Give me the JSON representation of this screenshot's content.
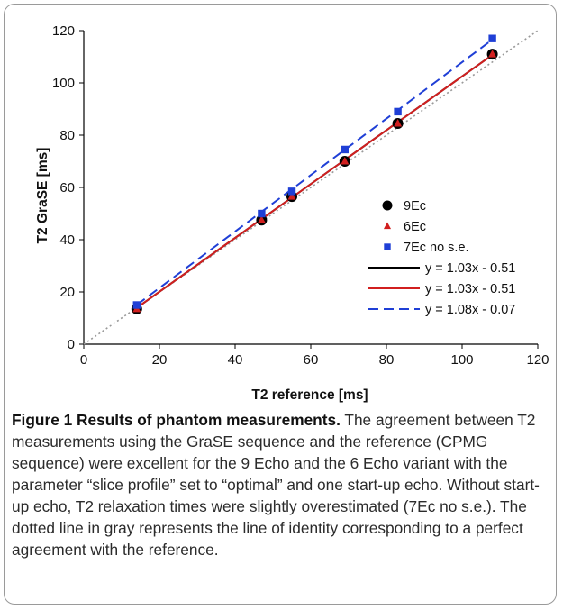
{
  "chart_data": {
    "type": "scatter",
    "xlabel": "T2 reference [ms]",
    "ylabel": "T2 GraSE [ms]",
    "xlim": [
      0,
      120
    ],
    "ylim": [
      0,
      120
    ],
    "xticks": [
      0,
      20,
      40,
      60,
      80,
      100,
      120
    ],
    "yticks": [
      0,
      20,
      40,
      60,
      80,
      100,
      120
    ],
    "grid": false,
    "legend_position": "bottom-right",
    "identity_line": {
      "style": "dotted",
      "color": "#999999"
    },
    "series": [
      {
        "name": "9Ec",
        "marker": "circle",
        "color": "#000000",
        "x": [
          14,
          47,
          55,
          69,
          83,
          108
        ],
        "y": [
          13.5,
          47.5,
          56.5,
          70,
          84.5,
          111
        ]
      },
      {
        "name": "6Ec",
        "marker": "triangle",
        "color": "#d11f1f",
        "x": [
          14,
          47,
          55,
          69,
          83,
          108
        ],
        "y": [
          13.5,
          47.5,
          56.5,
          70,
          84.5,
          111
        ]
      },
      {
        "name": "7Ec no s.e.",
        "marker": "square",
        "color": "#1f3fd6",
        "x": [
          14,
          47,
          55,
          69,
          83,
          108
        ],
        "y": [
          15,
          50,
          58.5,
          74.5,
          89,
          117
        ]
      }
    ],
    "fits": [
      {
        "name": "y = 1.03x - 0.51",
        "slope": 1.03,
        "intercept": -0.51,
        "x_range": [
          14,
          108
        ],
        "color": "#000000",
        "dash": "solid"
      },
      {
        "name": "y = 1.03x - 0.51",
        "slope": 1.03,
        "intercept": -0.51,
        "x_range": [
          14,
          108
        ],
        "color": "#d11f1f",
        "dash": "solid"
      },
      {
        "name": "y = 1.08x - 0.07",
        "slope": 1.08,
        "intercept": -0.07,
        "x_range": [
          14,
          108
        ],
        "color": "#1f3fd6",
        "dash": "dashed"
      }
    ]
  },
  "caption": {
    "lead": "Figure 1 Results of phantom measurements.",
    "text": " The agreement between T2 measurements using the GraSE sequence and the reference (CPMG sequence) were excellent for the 9 Echo and the 6 Echo variant with the parameter “slice profile” set to “optimal” and one start-up echo. Without start-up echo, T2 relaxation times were slightly overestimated (7Ec no s.e.). The dotted line in gray represents the line of identity corresponding to a perfect agreement with the reference."
  }
}
